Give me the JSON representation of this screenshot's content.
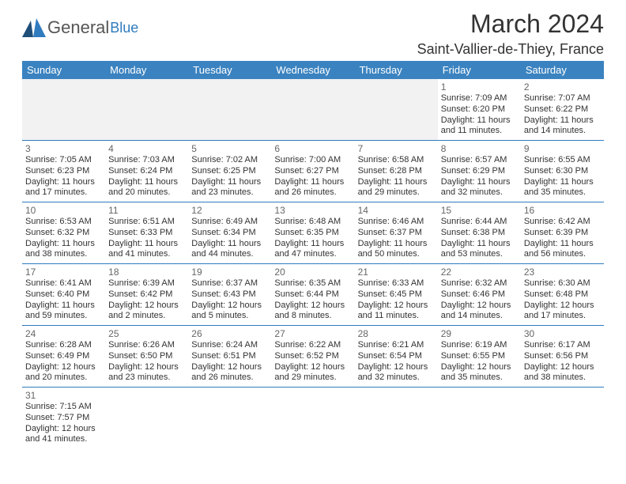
{
  "logo": {
    "general": "General",
    "blue": "Blue"
  },
  "header": {
    "title": "March 2024",
    "location": "Saint-Vallier-de-Thiey, France"
  },
  "colors": {
    "header_bg": "#3b83c0",
    "header_fg": "#ffffff",
    "cell_border": "#2f7bbf",
    "empty_bg": "#f2f2f2",
    "text": "#333333",
    "daynum": "#666666",
    "logo_general": "#555555",
    "logo_blue": "#2f7bbf"
  },
  "typography": {
    "title_fontsize": 32,
    "location_fontsize": 18,
    "dow_fontsize": 13,
    "daynum_fontsize": 12,
    "info_fontsize": 11
  },
  "dow": [
    "Sunday",
    "Monday",
    "Tuesday",
    "Wednesday",
    "Thursday",
    "Friday",
    "Saturday"
  ],
  "weeks": [
    [
      null,
      null,
      null,
      null,
      null,
      {
        "n": "1",
        "sr": "Sunrise: 7:09 AM",
        "ss": "Sunset: 6:20 PM",
        "dl": "Daylight: 11 hours and 11 minutes."
      },
      {
        "n": "2",
        "sr": "Sunrise: 7:07 AM",
        "ss": "Sunset: 6:22 PM",
        "dl": "Daylight: 11 hours and 14 minutes."
      }
    ],
    [
      {
        "n": "3",
        "sr": "Sunrise: 7:05 AM",
        "ss": "Sunset: 6:23 PM",
        "dl": "Daylight: 11 hours and 17 minutes."
      },
      {
        "n": "4",
        "sr": "Sunrise: 7:03 AM",
        "ss": "Sunset: 6:24 PM",
        "dl": "Daylight: 11 hours and 20 minutes."
      },
      {
        "n": "5",
        "sr": "Sunrise: 7:02 AM",
        "ss": "Sunset: 6:25 PM",
        "dl": "Daylight: 11 hours and 23 minutes."
      },
      {
        "n": "6",
        "sr": "Sunrise: 7:00 AM",
        "ss": "Sunset: 6:27 PM",
        "dl": "Daylight: 11 hours and 26 minutes."
      },
      {
        "n": "7",
        "sr": "Sunrise: 6:58 AM",
        "ss": "Sunset: 6:28 PM",
        "dl": "Daylight: 11 hours and 29 minutes."
      },
      {
        "n": "8",
        "sr": "Sunrise: 6:57 AM",
        "ss": "Sunset: 6:29 PM",
        "dl": "Daylight: 11 hours and 32 minutes."
      },
      {
        "n": "9",
        "sr": "Sunrise: 6:55 AM",
        "ss": "Sunset: 6:30 PM",
        "dl": "Daylight: 11 hours and 35 minutes."
      }
    ],
    [
      {
        "n": "10",
        "sr": "Sunrise: 6:53 AM",
        "ss": "Sunset: 6:32 PM",
        "dl": "Daylight: 11 hours and 38 minutes."
      },
      {
        "n": "11",
        "sr": "Sunrise: 6:51 AM",
        "ss": "Sunset: 6:33 PM",
        "dl": "Daylight: 11 hours and 41 minutes."
      },
      {
        "n": "12",
        "sr": "Sunrise: 6:49 AM",
        "ss": "Sunset: 6:34 PM",
        "dl": "Daylight: 11 hours and 44 minutes."
      },
      {
        "n": "13",
        "sr": "Sunrise: 6:48 AM",
        "ss": "Sunset: 6:35 PM",
        "dl": "Daylight: 11 hours and 47 minutes."
      },
      {
        "n": "14",
        "sr": "Sunrise: 6:46 AM",
        "ss": "Sunset: 6:37 PM",
        "dl": "Daylight: 11 hours and 50 minutes."
      },
      {
        "n": "15",
        "sr": "Sunrise: 6:44 AM",
        "ss": "Sunset: 6:38 PM",
        "dl": "Daylight: 11 hours and 53 minutes."
      },
      {
        "n": "16",
        "sr": "Sunrise: 6:42 AM",
        "ss": "Sunset: 6:39 PM",
        "dl": "Daylight: 11 hours and 56 minutes."
      }
    ],
    [
      {
        "n": "17",
        "sr": "Sunrise: 6:41 AM",
        "ss": "Sunset: 6:40 PM",
        "dl": "Daylight: 11 hours and 59 minutes."
      },
      {
        "n": "18",
        "sr": "Sunrise: 6:39 AM",
        "ss": "Sunset: 6:42 PM",
        "dl": "Daylight: 12 hours and 2 minutes."
      },
      {
        "n": "19",
        "sr": "Sunrise: 6:37 AM",
        "ss": "Sunset: 6:43 PM",
        "dl": "Daylight: 12 hours and 5 minutes."
      },
      {
        "n": "20",
        "sr": "Sunrise: 6:35 AM",
        "ss": "Sunset: 6:44 PM",
        "dl": "Daylight: 12 hours and 8 minutes."
      },
      {
        "n": "21",
        "sr": "Sunrise: 6:33 AM",
        "ss": "Sunset: 6:45 PM",
        "dl": "Daylight: 12 hours and 11 minutes."
      },
      {
        "n": "22",
        "sr": "Sunrise: 6:32 AM",
        "ss": "Sunset: 6:46 PM",
        "dl": "Daylight: 12 hours and 14 minutes."
      },
      {
        "n": "23",
        "sr": "Sunrise: 6:30 AM",
        "ss": "Sunset: 6:48 PM",
        "dl": "Daylight: 12 hours and 17 minutes."
      }
    ],
    [
      {
        "n": "24",
        "sr": "Sunrise: 6:28 AM",
        "ss": "Sunset: 6:49 PM",
        "dl": "Daylight: 12 hours and 20 minutes."
      },
      {
        "n": "25",
        "sr": "Sunrise: 6:26 AM",
        "ss": "Sunset: 6:50 PM",
        "dl": "Daylight: 12 hours and 23 minutes."
      },
      {
        "n": "26",
        "sr": "Sunrise: 6:24 AM",
        "ss": "Sunset: 6:51 PM",
        "dl": "Daylight: 12 hours and 26 minutes."
      },
      {
        "n": "27",
        "sr": "Sunrise: 6:22 AM",
        "ss": "Sunset: 6:52 PM",
        "dl": "Daylight: 12 hours and 29 minutes."
      },
      {
        "n": "28",
        "sr": "Sunrise: 6:21 AM",
        "ss": "Sunset: 6:54 PM",
        "dl": "Daylight: 12 hours and 32 minutes."
      },
      {
        "n": "29",
        "sr": "Sunrise: 6:19 AM",
        "ss": "Sunset: 6:55 PM",
        "dl": "Daylight: 12 hours and 35 minutes."
      },
      {
        "n": "30",
        "sr": "Sunrise: 6:17 AM",
        "ss": "Sunset: 6:56 PM",
        "dl": "Daylight: 12 hours and 38 minutes."
      }
    ],
    [
      {
        "n": "31",
        "sr": "Sunrise: 7:15 AM",
        "ss": "Sunset: 7:57 PM",
        "dl": "Daylight: 12 hours and 41 minutes."
      },
      null,
      null,
      null,
      null,
      null,
      null
    ]
  ]
}
